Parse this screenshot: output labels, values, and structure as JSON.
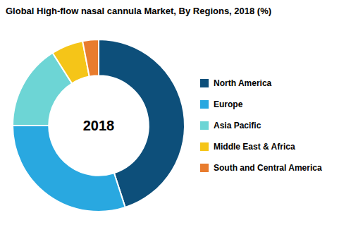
{
  "chart_data": {
    "type": "donut",
    "title": "Global High-flow nasal cannula Market, By Regions, 2018 (%)",
    "center_text": "2018",
    "categories": [
      "North America",
      "Europe",
      "Asia Pacific",
      "Middle East & Africa",
      "South and Central America"
    ],
    "values": [
      45,
      30,
      16,
      6,
      3
    ],
    "colors": [
      "#0d4f7a",
      "#29a8e0",
      "#6dd5d5",
      "#f5c518",
      "#e87c2e"
    ],
    "legend": "right"
  }
}
